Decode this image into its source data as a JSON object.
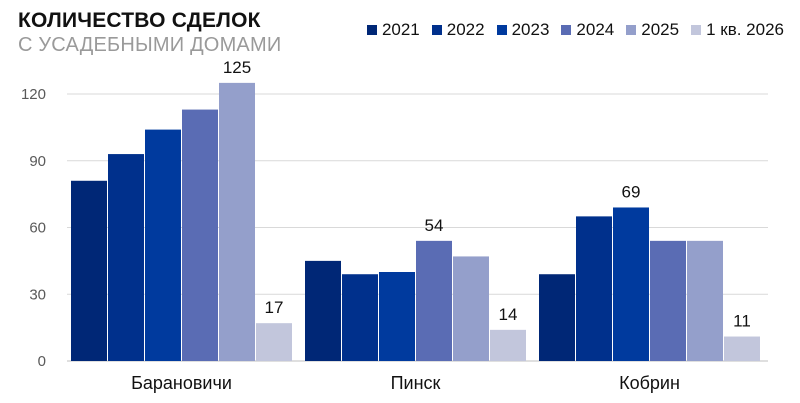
{
  "header": {
    "title": "КОЛИЧЕСТВО СДЕЛОК",
    "subtitle": "С УСАДЕБНЫМИ ДОМАМИ"
  },
  "chart_data": {
    "type": "bar",
    "title": "КОЛИЧЕСТВО СДЕЛОК",
    "subtitle": "С УСАДЕБНЫМИ ДОМАМИ",
    "categories": [
      "Барановичи",
      "Пинск",
      "Кобрин"
    ],
    "series": [
      {
        "name": "2021",
        "color": "#002776",
        "values": [
          81,
          45,
          39
        ]
      },
      {
        "name": "2022",
        "color": "#00308c",
        "values": [
          93,
          39,
          65
        ]
      },
      {
        "name": "2023",
        "color": "#003a9e",
        "values": [
          104,
          40,
          69
        ]
      },
      {
        "name": "2024",
        "color": "#5a6cb4",
        "values": [
          113,
          54,
          54
        ]
      },
      {
        "name": "2025",
        "color": "#949fcb",
        "values": [
          125,
          47,
          54
        ]
      },
      {
        "name": "1 кв. 2026",
        "color": "#c2c6dc",
        "values": [
          17,
          14,
          11
        ]
      }
    ],
    "data_labels": [
      {
        "series": "2025",
        "category": "Барановичи",
        "text": "125"
      },
      {
        "series": "1 кв. 2026",
        "category": "Барановичи",
        "text": "17"
      },
      {
        "series": "2024",
        "category": "Пинск",
        "text": "54"
      },
      {
        "series": "1 кв. 2026",
        "category": "Пинск",
        "text": "14"
      },
      {
        "series": "2023",
        "category": "Кобрин",
        "text": "69"
      },
      {
        "series": "1 кв. 2026",
        "category": "Кобрин",
        "text": "11"
      }
    ],
    "yticks": [
      0,
      30,
      60,
      90,
      120
    ],
    "ylim": [
      0,
      130
    ],
    "xlabel": "",
    "ylabel": "",
    "grid": true,
    "legend": "top-right"
  }
}
